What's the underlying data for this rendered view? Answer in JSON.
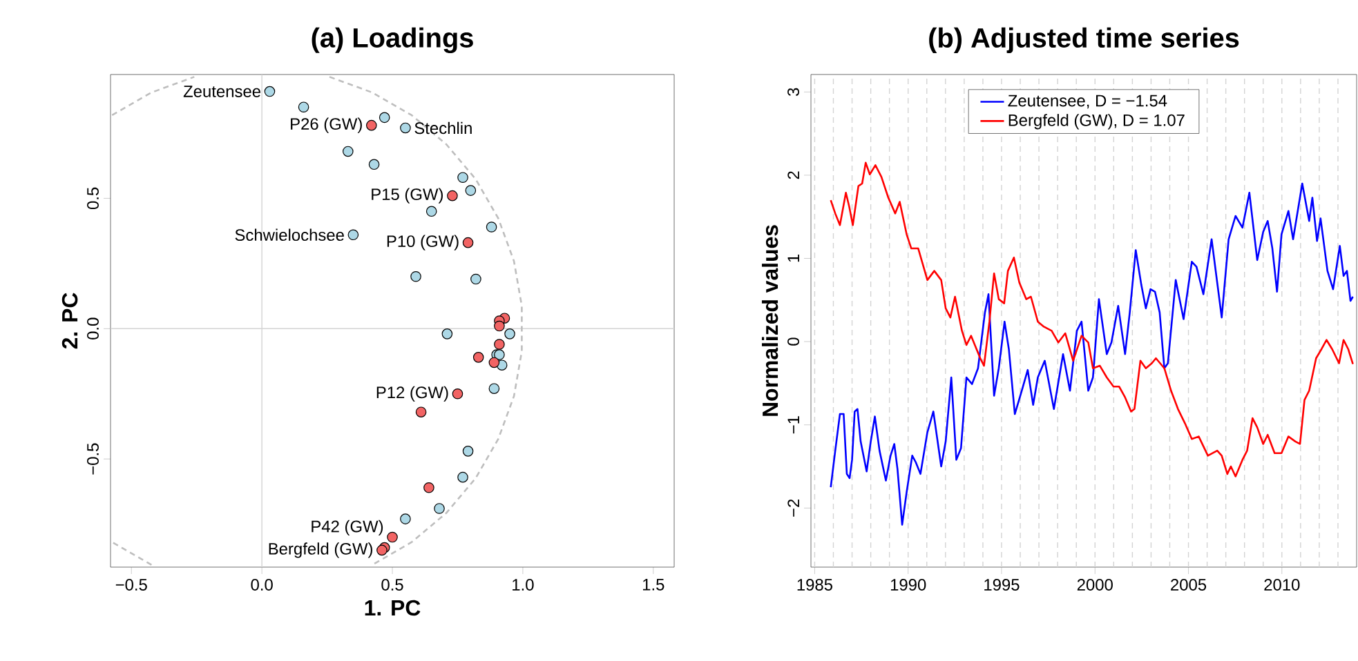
{
  "chart_data": [
    {
      "type": "scatter",
      "title": "(a) Loadings",
      "xlabel": "1. PC",
      "ylabel": "2. PC",
      "xlim": [
        -0.58,
        1.58
      ],
      "ylim": [
        -0.915,
        0.975
      ],
      "xticks": [
        {
          "value": -0.5,
          "label": "−0.5"
        },
        {
          "value": 0,
          "label": "0.0"
        },
        0.5,
        {
          "value": 1,
          "label": "1.0"
        },
        1.5
      ],
      "yticks": [
        {
          "value": -0.5,
          "label": "−0.5"
        },
        {
          "value": 0,
          "label": "0.0"
        },
        0.5
      ],
      "ref_lines": [
        {
          "axis": "x",
          "value": 0,
          "color": "#d3d3d3"
        },
        {
          "axis": "y",
          "value": 0,
          "color": "#d3d3d3"
        }
      ],
      "series": [
        {
          "type": "line",
          "marker": "none",
          "color": "#bebebe",
          "line_style": "dashed",
          "x": [
            -0.574,
            -0.423,
            -0.259,
            null,
            0.259,
            0.423,
            0.574,
            0.707,
            0.819,
            0.906,
            0.966,
            0.996,
            0.996,
            0.966,
            0.906,
            0.819,
            0.707,
            0.574,
            0.423,
            null,
            -0.423,
            -0.574
          ],
          "values": [
            0.819,
            0.906,
            0.966,
            null,
            0.966,
            0.906,
            0.819,
            0.707,
            0.574,
            0.423,
            0.259,
            0.087,
            -0.087,
            -0.259,
            -0.423,
            -0.574,
            -0.707,
            -0.819,
            -0.906,
            null,
            -0.906,
            -0.819
          ]
        },
        {
          "marker": "circle",
          "color": "#add8e6",
          "x": [
            0.03,
            0.16,
            0.47,
            0.55,
            0.33,
            0.43,
            0.77,
            0.8,
            0.65,
            0.88,
            0.35,
            0.59,
            0.82,
            0.71,
            0.95,
            0.9,
            0.91,
            0.92,
            0.89,
            0.79,
            0.77,
            0.68,
            0.55
          ],
          "values": [
            0.91,
            0.85,
            0.81,
            0.77,
            0.68,
            0.63,
            0.58,
            0.53,
            0.45,
            0.39,
            0.36,
            0.2,
            0.19,
            -0.02,
            -0.02,
            -0.1,
            -0.1,
            -0.14,
            -0.23,
            -0.47,
            -0.57,
            -0.69,
            -0.73
          ]
        },
        {
          "marker": "circle",
          "color": "#f26464",
          "x": [
            0.42,
            0.73,
            0.79,
            0.93,
            0.91,
            0.91,
            0.91,
            0.83,
            0.89,
            0.75,
            0.61,
            0.64,
            0.5,
            0.47,
            0.46
          ],
          "values": [
            0.78,
            0.51,
            0.33,
            0.04,
            0.03,
            0.01,
            -0.06,
            -0.11,
            -0.13,
            -0.25,
            -0.32,
            -0.61,
            -0.8,
            -0.84,
            -0.85
          ]
        }
      ],
      "annotations": [
        {
          "text": "Zeutensee",
          "x": 0.03,
          "y": 0.91
        },
        {
          "text": "P26 (GW)",
          "x": 0.42,
          "y": 0.78
        },
        {
          "text": "Stechlin",
          "x": 0.55,
          "y": 0.77
        },
        {
          "text": "P15 (GW)",
          "x": 0.73,
          "y": 0.51
        },
        {
          "text": "Schwielochsee",
          "x": 0.35,
          "y": 0.36
        },
        {
          "text": "P10 (GW)",
          "x": 0.79,
          "y": 0.33
        },
        {
          "text": "P12 (GW)",
          "x": 0.75,
          "y": -0.25
        },
        {
          "text": "P42 (GW)",
          "x": 0.5,
          "y": -0.8
        },
        {
          "text": "Bergfeld (GW)",
          "x": 0.46,
          "y": -0.85
        }
      ]
    },
    {
      "type": "line",
      "title": "(b) Adjusted time series",
      "ylabel": "Normalized values",
      "legend": "top",
      "xlim": [
        1984.8,
        2014.0
      ],
      "ylim": [
        -2.71,
        3.21
      ],
      "xticks": [
        1985,
        1990,
        1995,
        2000,
        2005,
        2010
      ],
      "yticks": [
        {
          "value": -2,
          "label": "−2"
        },
        {
          "value": -1,
          "label": "−1"
        },
        0,
        1,
        2,
        3
      ],
      "ref_lines": [
        {
          "axis": "x",
          "value": 1985,
          "color": "#d3d3d3",
          "line_style": "dashed"
        },
        {
          "axis": "x",
          "value": 1986,
          "color": "#d3d3d3",
          "line_style": "dashed"
        },
        {
          "axis": "x",
          "value": 1987,
          "color": "#d3d3d3",
          "line_style": "dashed"
        },
        {
          "axis": "x",
          "value": 1988,
          "color": "#d3d3d3",
          "line_style": "dashed"
        },
        {
          "axis": "x",
          "value": 1989,
          "color": "#d3d3d3",
          "line_style": "dashed"
        },
        {
          "axis": "x",
          "value": 1990,
          "color": "#d3d3d3",
          "line_style": "dashed"
        },
        {
          "axis": "x",
          "value": 1991,
          "color": "#d3d3d3",
          "line_style": "dashed"
        },
        {
          "axis": "x",
          "value": 1992,
          "color": "#d3d3d3",
          "line_style": "dashed"
        },
        {
          "axis": "x",
          "value": 1993,
          "color": "#d3d3d3",
          "line_style": "dashed"
        },
        {
          "axis": "x",
          "value": 1994,
          "color": "#d3d3d3",
          "line_style": "dashed"
        },
        {
          "axis": "x",
          "value": 1995,
          "color": "#d3d3d3",
          "line_style": "dashed"
        },
        {
          "axis": "x",
          "value": 1996,
          "color": "#d3d3d3",
          "line_style": "dashed"
        },
        {
          "axis": "x",
          "value": 1997,
          "color": "#d3d3d3",
          "line_style": "dashed"
        },
        {
          "axis": "x",
          "value": 1998,
          "color": "#d3d3d3",
          "line_style": "dashed"
        },
        {
          "axis": "x",
          "value": 1999,
          "color": "#d3d3d3",
          "line_style": "dashed"
        },
        {
          "axis": "x",
          "value": 2000,
          "color": "#d3d3d3",
          "line_style": "dashed"
        },
        {
          "axis": "x",
          "value": 2001,
          "color": "#d3d3d3",
          "line_style": "dashed"
        },
        {
          "axis": "x",
          "value": 2002,
          "color": "#d3d3d3",
          "line_style": "dashed"
        },
        {
          "axis": "x",
          "value": 2003,
          "color": "#d3d3d3",
          "line_style": "dashed"
        },
        {
          "axis": "x",
          "value": 2004,
          "color": "#d3d3d3",
          "line_style": "dashed"
        },
        {
          "axis": "x",
          "value": 2005,
          "color": "#d3d3d3",
          "line_style": "dashed"
        },
        {
          "axis": "x",
          "value": 2006,
          "color": "#d3d3d3",
          "line_style": "dashed"
        },
        {
          "axis": "x",
          "value": 2007,
          "color": "#d3d3d3",
          "line_style": "dashed"
        },
        {
          "axis": "x",
          "value": 2008,
          "color": "#d3d3d3",
          "line_style": "dashed"
        },
        {
          "axis": "x",
          "value": 2009,
          "color": "#d3d3d3",
          "line_style": "dashed"
        },
        {
          "axis": "x",
          "value": 2010,
          "color": "#d3d3d3",
          "line_style": "dashed"
        },
        {
          "axis": "x",
          "value": 2011,
          "color": "#d3d3d3",
          "line_style": "dashed"
        },
        {
          "axis": "x",
          "value": 2012,
          "color": "#d3d3d3",
          "line_style": "dashed"
        },
        {
          "axis": "x",
          "value": 2013,
          "color": "#d3d3d3",
          "line_style": "dashed"
        }
      ],
      "series": [
        {
          "name": "Zeutensee, D = −1.54",
          "color": "#0000ff",
          "x": [
            1985.86,
            1986.1,
            1986.35,
            1986.55,
            1986.72,
            1986.87,
            1987.0,
            1987.14,
            1987.29,
            1987.46,
            1987.78,
            1988.0,
            1988.22,
            1988.47,
            1988.81,
            1989.06,
            1989.26,
            1989.43,
            1989.68,
            1989.92,
            1990.22,
            1990.41,
            1990.66,
            1991.03,
            1991.35,
            1991.77,
            1992.01,
            1992.31,
            1992.58,
            1992.83,
            1993.12,
            1993.42,
            1993.74,
            1994.11,
            1994.3,
            1994.6,
            1994.85,
            1995.16,
            1995.39,
            1995.71,
            1996.08,
            1996.4,
            1996.69,
            1996.94,
            1997.31,
            1997.8,
            1998.29,
            1998.66,
            1999.03,
            1999.28,
            1999.64,
            1999.89,
            2000.21,
            2000.63,
            2000.88,
            2001.24,
            2001.61,
            2001.86,
            2002.18,
            2002.48,
            2002.72,
            2002.97,
            2003.21,
            2003.46,
            2003.71,
            2003.9,
            2004.32,
            2004.74,
            2005.18,
            2005.43,
            2005.8,
            2006.24,
            2006.78,
            2007.15,
            2007.52,
            2007.89,
            2008.26,
            2008.68,
            2009.0,
            2009.24,
            2009.49,
            2009.74,
            2009.98,
            2010.35,
            2010.6,
            2011.09,
            2011.46,
            2011.63,
            2011.88,
            2012.07,
            2012.44,
            2012.74,
            2013.1,
            2013.3,
            2013.48,
            2013.67,
            2013.8
          ],
          "values": [
            -1.75,
            -1.31,
            -0.87,
            -0.87,
            -1.59,
            -1.64,
            -1.42,
            -0.84,
            -0.81,
            -1.2,
            -1.56,
            -1.2,
            -0.9,
            -1.31,
            -1.67,
            -1.37,
            -1.23,
            -1.53,
            -2.2,
            -1.81,
            -1.37,
            -1.45,
            -1.59,
            -1.09,
            -0.84,
            -1.5,
            -1.2,
            -0.43,
            -1.42,
            -1.28,
            -0.43,
            -0.51,
            -0.32,
            0.35,
            0.57,
            -0.65,
            -0.32,
            0.24,
            -0.09,
            -0.87,
            -0.59,
            -0.34,
            -0.76,
            -0.43,
            -0.23,
            -0.81,
            -0.15,
            -0.59,
            0.13,
            0.24,
            -0.59,
            -0.43,
            0.51,
            -0.15,
            -0.01,
            0.43,
            -0.15,
            0.35,
            1.1,
            0.68,
            0.4,
            0.63,
            0.6,
            0.35,
            -0.32,
            -0.26,
            0.74,
            0.27,
            0.96,
            0.9,
            0.57,
            1.23,
            0.29,
            1.23,
            1.51,
            1.37,
            1.79,
            0.98,
            1.32,
            1.45,
            1.12,
            0.6,
            1.29,
            1.57,
            1.23,
            1.9,
            1.45,
            1.73,
            1.21,
            1.48,
            0.85,
            0.63,
            1.15,
            0.79,
            0.85,
            0.49,
            0.54
          ]
        },
        {
          "name": "Bergfeld (GW), D = 1.07",
          "color": "#ff0000",
          "x": [
            1985.86,
            1986.1,
            1986.35,
            1986.67,
            1986.85,
            1987.04,
            1987.34,
            1987.54,
            1987.73,
            1987.95,
            1988.25,
            1988.57,
            1988.94,
            1989.31,
            1989.55,
            1989.92,
            1990.17,
            1990.54,
            1991.03,
            1991.4,
            1991.77,
            1992.01,
            1992.26,
            1992.51,
            1992.88,
            1993.12,
            1993.37,
            1993.86,
            1994.06,
            1994.35,
            1994.6,
            1994.85,
            1995.14,
            1995.34,
            1995.66,
            1995.95,
            1996.32,
            1996.57,
            1996.94,
            1997.26,
            1997.68,
            1998.04,
            1998.41,
            1998.83,
            1999.28,
            1999.64,
            1999.89,
            2000.26,
            2000.63,
            2000.99,
            2001.29,
            2001.61,
            2001.93,
            2002.11,
            2002.43,
            2002.72,
            2003.04,
            2003.26,
            2003.71,
            2004.07,
            2004.44,
            2004.81,
            2005.18,
            2005.55,
            2006.04,
            2006.54,
            2006.78,
            2007.08,
            2007.27,
            2007.52,
            2007.89,
            2008.14,
            2008.43,
            2008.68,
            2009.0,
            2009.24,
            2009.61,
            2009.98,
            2010.35,
            2010.72,
            2010.97,
            2011.21,
            2011.46,
            2011.83,
            2012.12,
            2012.39,
            2012.69,
            2013.06,
            2013.3,
            2013.55,
            2013.8
          ],
          "values": [
            1.7,
            1.54,
            1.4,
            1.79,
            1.62,
            1.4,
            1.87,
            1.9,
            2.15,
            2.01,
            2.12,
            1.98,
            1.73,
            1.54,
            1.68,
            1.29,
            1.12,
            1.12,
            0.74,
            0.85,
            0.74,
            0.4,
            0.29,
            0.54,
            0.13,
            -0.04,
            0.07,
            -0.2,
            -0.29,
            0.24,
            0.82,
            0.51,
            0.46,
            0.85,
            1.01,
            0.71,
            0.51,
            0.54,
            0.24,
            0.18,
            0.13,
            -0.01,
            0.1,
            -0.23,
            0.07,
            -0.01,
            -0.32,
            -0.29,
            -0.43,
            -0.54,
            -0.54,
            -0.67,
            -0.84,
            -0.81,
            -0.23,
            -0.32,
            -0.26,
            -0.2,
            -0.32,
            -0.59,
            -0.81,
            -0.98,
            -1.17,
            -1.14,
            -1.37,
            -1.31,
            -1.37,
            -1.59,
            -1.5,
            -1.62,
            -1.42,
            -1.31,
            -0.92,
            -1.03,
            -1.23,
            -1.12,
            -1.34,
            -1.34,
            -1.14,
            -1.2,
            -1.23,
            -0.7,
            -0.59,
            -0.2,
            -0.09,
            0.02,
            -0.09,
            -0.26,
            0.02,
            -0.09,
            -0.27
          ]
        }
      ]
    }
  ]
}
